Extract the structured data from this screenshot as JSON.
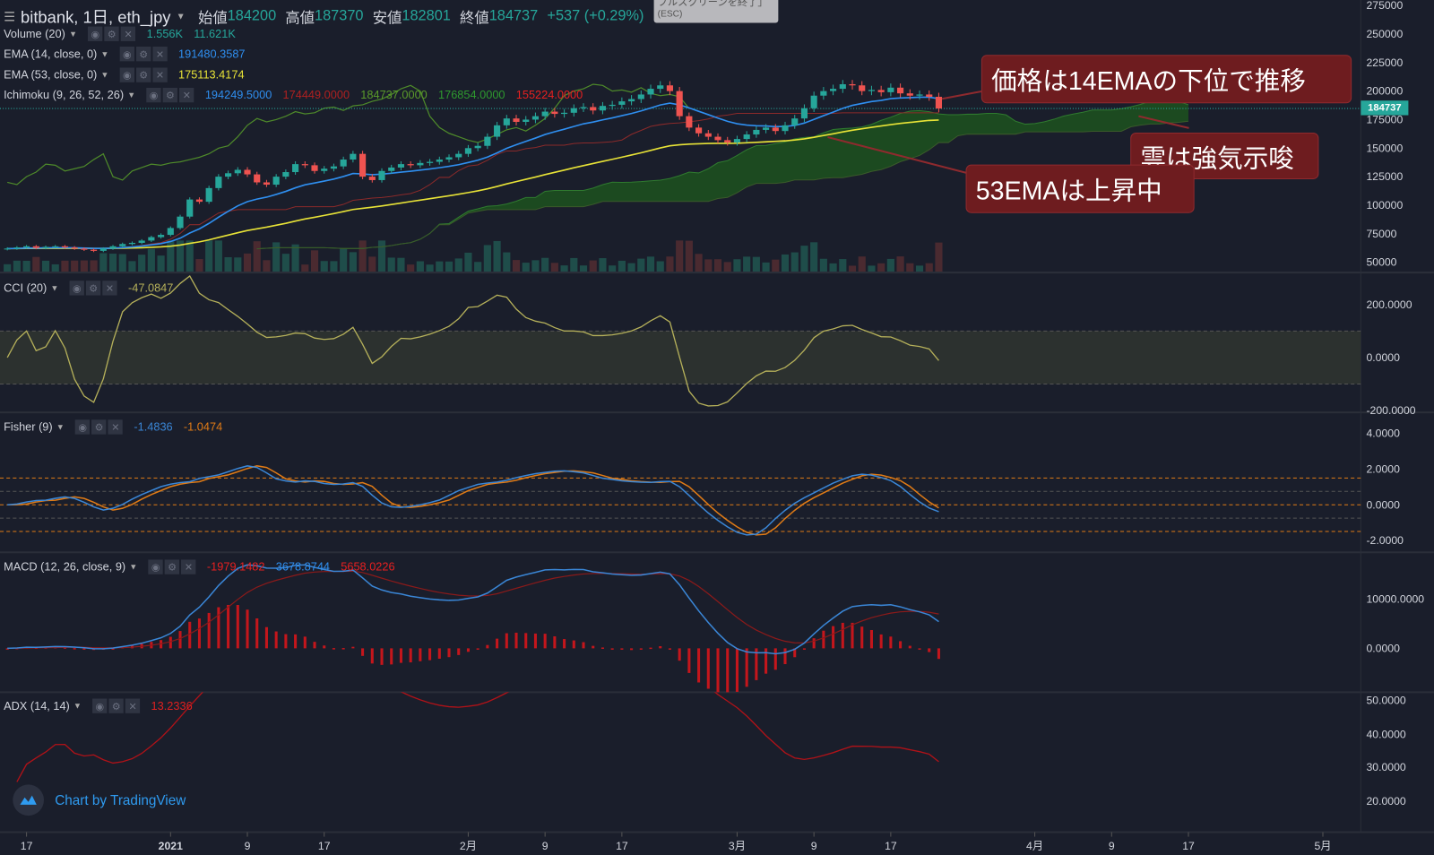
{
  "header": {
    "symbol": "bitbank, 1日, eth_jpy",
    "open_label": "始値",
    "open": "184200",
    "high_label": "高値",
    "high": "187370",
    "low_label": "安値",
    "low": "182801",
    "close_label": "終値",
    "close": "184737",
    "change": "+537 (+0.29%)"
  },
  "fullscreen_tooltip": {
    "text": "フルスクリーンを終了」",
    "shortcut": "(ESC)"
  },
  "indicators": {
    "volume": {
      "label": "Volume (20)",
      "values": [
        "1.556K",
        "11.621K"
      ]
    },
    "ema14": {
      "label": "EMA (14, close, 0)",
      "values": [
        "191480.3587"
      ]
    },
    "ema53": {
      "label": "EMA (53, close, 0)",
      "values": [
        "175113.4174"
      ]
    },
    "ichimoku": {
      "label": "Ichimoku (9, 26, 52, 26)",
      "values": [
        "194249.5000",
        "174449.0000",
        "184737.0000",
        "176854.0000",
        "155224.0000"
      ]
    },
    "cci": {
      "label": "CCI (20)",
      "values": [
        "-47.0847"
      ]
    },
    "fisher": {
      "label": "Fisher (9)",
      "values": [
        "-1.4836",
        "-1.0474"
      ]
    },
    "macd": {
      "label": "MACD (12, 26, close, 9)",
      "values": [
        "-1979.1482",
        "3678.8744",
        "5658.0226"
      ]
    },
    "adx": {
      "label": "ADX (14, 14)",
      "values": [
        "13.2336"
      ]
    }
  },
  "annotations": [
    {
      "text": "価格は14EMAの下位で推移"
    },
    {
      "text": "雲は強気示唆"
    },
    {
      "text": "53EMAは上昇中"
    }
  ],
  "price_axis": {
    "ticks": [
      "275000",
      "250000",
      "225000",
      "200000",
      "175000",
      "150000",
      "125000",
      "100000",
      "75000",
      "50000"
    ],
    "last_price": "184737"
  },
  "cci_axis": {
    "ticks": [
      "200.0000",
      "0.0000",
      "-200.0000"
    ]
  },
  "fisher_axis": {
    "ticks": [
      "4.0000",
      "2.0000",
      "0.0000",
      "-2.0000"
    ]
  },
  "macd_axis": {
    "ticks": [
      "10000.0000",
      "0.0000"
    ]
  },
  "adx_axis": {
    "ticks": [
      "50.0000",
      "40.0000",
      "30.0000",
      "20.0000"
    ]
  },
  "time_axis": {
    "ticks": [
      {
        "label": "17",
        "day": 2
      },
      {
        "label": "2021",
        "day": 17
      },
      {
        "label": "9",
        "day": 25
      },
      {
        "label": "17",
        "day": 33
      },
      {
        "label": "2月",
        "day": 48
      },
      {
        "label": "9",
        "day": 56
      },
      {
        "label": "17",
        "day": 64
      },
      {
        "label": "3月",
        "day": 76
      },
      {
        "label": "9",
        "day": 84
      },
      {
        "label": "17",
        "day": 92
      },
      {
        "label": "4月",
        "day": 107
      },
      {
        "label": "9",
        "day": 115
      },
      {
        "label": "17",
        "day": 123
      },
      {
        "label": "5月",
        "day": 137
      }
    ]
  },
  "watermark": "Chart by TradingView",
  "colors": {
    "bg": "#1a1e2b",
    "up": "#26a69a",
    "down": "#ef5350",
    "ema14": "#2f8ff0",
    "ema53": "#e8e337",
    "cloud": "#1e5a1e",
    "lagging": "#4e8a2a",
    "cci": "#b5b05a",
    "fisher": "#3a86d6",
    "trigger": "#e07b16",
    "macd": "#3a86d6",
    "signal": "#8b1a1a",
    "hist": "#c4161c",
    "adx": "#b01218"
  },
  "chart_data": {
    "type": "candlestick",
    "start_date": "2020-12-15",
    "first_open": 61500,
    "ylim": [
      50000,
      275000
    ],
    "closes": [
      62000,
      63000,
      64000,
      62500,
      63500,
      64000,
      63000,
      62000,
      61000,
      60000,
      62000,
      64000,
      66000,
      67000,
      69000,
      72000,
      74000,
      80000,
      90000,
      105000,
      103000,
      115000,
      125000,
      128000,
      131000,
      127000,
      120000,
      118000,
      125000,
      129000,
      136000,
      135000,
      130000,
      132000,
      134000,
      140000,
      145000,
      125000,
      122000,
      130000,
      133000,
      136000,
      135000,
      137000,
      138000,
      140000,
      142000,
      145000,
      150000,
      152000,
      160000,
      170000,
      176000,
      173000,
      175000,
      178000,
      182000,
      180000,
      181000,
      185000,
      186000,
      183000,
      187000,
      188000,
      191000,
      193000,
      197000,
      202000,
      205000,
      200000,
      178000,
      168000,
      163000,
      160000,
      157000,
      155000,
      158000,
      162000,
      166000,
      168000,
      165000,
      170000,
      176000,
      185000,
      196000,
      200000,
      202000,
      206000,
      205000,
      200000,
      201000,
      199000,
      203000,
      198000,
      196000,
      197000,
      195000,
      184737
    ],
    "cci_range": [
      -200,
      200
    ],
    "fisher_range": [
      -2,
      4
    ],
    "macd_range": [
      0,
      10000
    ],
    "adx_range": [
      20,
      50
    ]
  }
}
